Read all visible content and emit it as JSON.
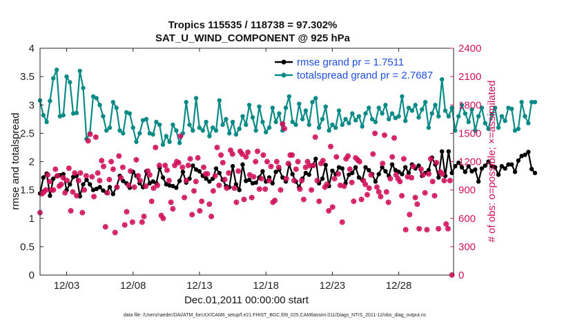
{
  "chart_data": {
    "type": "line",
    "title_line1": "Tropics 115535 / 118738 = 97.302%",
    "title_line2": "SAT_U_WIND_COMPONENT @ 925 hPa",
    "xlabel": "Dec.01,2011 00:00:00 start",
    "ylabel_left": "rmse and totalspread",
    "ylabel_right": "# of obs: o=possible; ×=assimilated",
    "footer": "data file: /Users/raeder/DAI/ATM_forcXX/CAM6_setup/f.e21.FHIST_BGC.f09_025.CAM6assim.011/Diags_NTrS_2011-12/obs_diag_output.nc",
    "xlim": [
      1.0,
      32.125
    ],
    "ylim_left": [
      0,
      4
    ],
    "ylim_right": [
      0,
      2400
    ],
    "x_ticks": [
      3,
      8,
      13,
      18,
      23,
      28
    ],
    "x_tick_labels": [
      "12/03",
      "12/08",
      "12/13",
      "12/18",
      "12/23",
      "12/28"
    ],
    "y_left_ticks": [
      0,
      0.5,
      1,
      1.5,
      2,
      2.5,
      3,
      3.5,
      4
    ],
    "y_left_tick_labels": [
      "0",
      "0.5",
      "1",
      "1.5",
      "2",
      "2.5",
      "3",
      "3.5",
      "4"
    ],
    "y_right_ticks": [
      0,
      300,
      600,
      900,
      1200,
      1500,
      1800,
      2100,
      2400
    ],
    "y_right_tick_labels": [
      "0",
      "300",
      "600",
      "900",
      "1200",
      "1500",
      "1800",
      "2100",
      "2400"
    ],
    "legend": {
      "rmse": "rmse grand pr = 1.7511",
      "totalspread": "totalspread grand pr = 2.7687",
      "placement": "top-right"
    },
    "colors": {
      "rmse": "#000000",
      "totalspread": "#0a8a86",
      "obs": "#d0105a",
      "legend_text": "#1f4fe0",
      "right_axis": "#d0105a"
    },
    "x_start": 1.0,
    "x_step": 0.25,
    "series": [
      {
        "name": "rmse",
        "values": [
          1.44,
          1.72,
          1.79,
          1.4,
          1.7,
          1.75,
          1.76,
          1.78,
          1.5,
          1.6,
          1.73,
          1.75,
          1.39,
          1.6,
          1.68,
          1.6,
          1.5,
          1.52,
          1.55,
          1.49,
          1.45,
          1.55,
          1.43,
          1.55,
          1.75,
          1.66,
          1.62,
          1.54,
          1.82,
          1.75,
          1.62,
          1.55,
          1.83,
          1.62,
          1.65,
          1.62,
          1.89,
          1.72,
          1.6,
          1.58,
          1.57,
          1.54,
          1.66,
          1.82,
          1.63,
          1.7,
          1.93,
          1.86,
          1.83,
          1.75,
          1.7,
          1.65,
          1.7,
          1.88,
          1.8,
          1.68,
          1.57,
          1.55,
          1.92,
          1.6,
          1.5,
          1.95,
          1.66,
          1.68,
          1.62,
          1.63,
          1.72,
          1.83,
          1.65,
          1.72,
          1.62,
          1.82,
          1.86,
          1.72,
          1.65,
          1.95,
          1.78,
          1.65,
          1.55,
          1.7,
          1.8,
          1.77,
          1.93,
          2.05,
          1.62,
          1.7,
          1.94,
          1.57,
          1.84,
          1.78,
          1.9,
          1.88,
          1.62,
          1.77,
          1.8,
          1.9,
          1.72,
          1.68,
          1.9,
          1.85,
          1.78,
          1.65,
          1.78,
          1.9,
          1.83,
          1.75,
          1.95,
          1.85,
          1.82,
          1.78,
          1.9,
          1.8,
          1.95,
          1.88,
          1.93,
          1.75,
          1.8,
          1.85,
          2.07,
          1.95,
          1.72,
          2.18,
          1.75,
          2.18,
          1.8,
          1.92,
          1.98,
          1.9,
          1.82,
          1.92,
          1.83,
          1.86,
          1.65,
          1.88,
          1.93,
          2.0,
          1.92,
          1.9,
          1.77,
          1.92,
          1.88,
          1.95,
          1.95,
          1.82,
          2.02,
          2.1,
          2.12,
          2.17,
          1.87,
          1.8
        ]
      },
      {
        "name": "totalspread",
        "values": [
          3.08,
          2.82,
          2.7,
          3.07,
          3.47,
          3.62,
          2.8,
          2.82,
          3.5,
          3.4,
          2.85,
          2.86,
          3.6,
          3.3,
          2.4,
          2.5,
          3.15,
          3.12,
          3.0,
          2.8,
          2.55,
          2.6,
          3.05,
          2.95,
          2.55,
          2.5,
          2.87,
          2.85,
          2.6,
          2.35,
          2.5,
          2.73,
          2.75,
          2.5,
          2.48,
          2.7,
          2.65,
          2.3,
          2.45,
          2.35,
          2.65,
          2.55,
          2.33,
          2.5,
          3.05,
          2.65,
          2.55,
          3.12,
          2.6,
          2.55,
          2.7,
          2.45,
          2.6,
          2.55,
          3.08,
          2.65,
          2.75,
          2.5,
          2.7,
          2.48,
          2.58,
          2.8,
          2.65,
          3.0,
          2.78,
          2.55,
          2.97,
          2.7,
          2.52,
          2.6,
          2.95,
          2.7,
          2.85,
          2.55,
          2.95,
          3.15,
          2.7,
          2.65,
          3.02,
          2.75,
          2.9,
          2.65,
          3.05,
          3.12,
          2.6,
          2.75,
          2.97,
          2.55,
          2.65,
          2.6,
          2.9,
          2.65,
          2.75,
          2.68,
          2.85,
          2.73,
          2.8,
          2.62,
          2.85,
          2.95,
          2.75,
          2.7,
          2.95,
          2.85,
          3.0,
          2.75,
          2.85,
          2.77,
          2.8,
          3.15,
          2.72,
          2.95,
          2.9,
          3.0,
          2.78,
          2.92,
          3.05,
          2.6,
          2.85,
          3.0,
          2.8,
          3.45,
          2.9,
          2.8,
          2.95,
          2.55,
          2.8,
          3.0,
          2.85,
          2.7,
          2.92,
          2.55,
          2.8,
          2.95,
          2.68,
          2.58,
          2.83,
          2.95,
          2.6,
          2.8,
          2.72,
          2.95,
          2.93,
          2.55,
          2.58,
          3.05,
          2.8,
          2.68,
          3.05,
          3.05
        ]
      },
      {
        "name": "obs_possible",
        "values": [
          660,
          860,
          880,
          900,
          1060,
          990,
          900,
          900,
          1120,
          1050,
          940,
          960,
          1030,
          870,
          1000,
          1130,
          680,
          880,
          1080,
          840,
          1000,
          1080,
          660,
          900,
          1050,
          1420,
          1490,
          1040,
          830,
          1460,
          1080,
          1000,
          1210,
          1150,
          510,
          870,
          1010,
          1200,
          1120,
          450,
          930,
          1260,
          1030,
          1140,
          530,
          670,
          950,
          1100,
          560,
          930,
          1220,
          1050,
          1000,
          560,
          620,
          940,
          1100,
          1060,
          780,
          920,
          1350,
          950,
          1160,
          630,
          600,
          1160,
          1110,
          1000,
          770,
          700,
          1160,
          1200,
          1190,
          1470,
          1140,
          820,
          1000,
          1160,
          1230,
          640,
          890,
          990,
          1240,
          680,
          780,
          1140,
          1070,
          1070,
          750,
          620,
          890,
          1050,
          1350,
          950,
          1270,
          1190,
          1010,
          920,
          1080,
          1320,
          1280,
          920,
          770,
          1100,
          1310,
          1280,
          800,
          1250,
          1300,
          1060,
          820,
          1040,
          1200,
          1310,
          910,
          1020,
          1270,
          910,
          1200,
          1000,
          1150,
          770,
          790,
          1200,
          1140,
          900,
          1600,
          1550,
          1020,
          1180,
          1270,
          1270,
          1000,
          1120,
          1200,
          910,
          1000,
          800,
          1140,
          1200,
          1160,
          900,
          1160,
          1460,
          1000,
          780,
          1180,
          1210,
          930,
          960,
          680,
          1360,
          720,
          1020,
          1250,
          1070,
          950,
          560,
          940,
          1230,
          1260,
          1120,
          980,
          780,
          1240,
          1220,
          1200,
          800,
          1000,
          960,
          850,
          920,
          1060,
          1280,
          1500,
          930,
          880,
          830,
          1180,
          1480,
          880,
          770,
          1020,
          1250,
          1450,
          1060,
          1020,
          990,
          840,
          1230,
          480,
          1040,
          640,
          1030,
          1150,
          820,
          750,
          490,
          1120,
          1060,
          870,
          480,
          1070,
          1230,
          990,
          840,
          1190,
          490,
          1090,
          1070,
          1000,
          540,
          490,
          1000,
          0
        ]
      }
    ]
  }
}
